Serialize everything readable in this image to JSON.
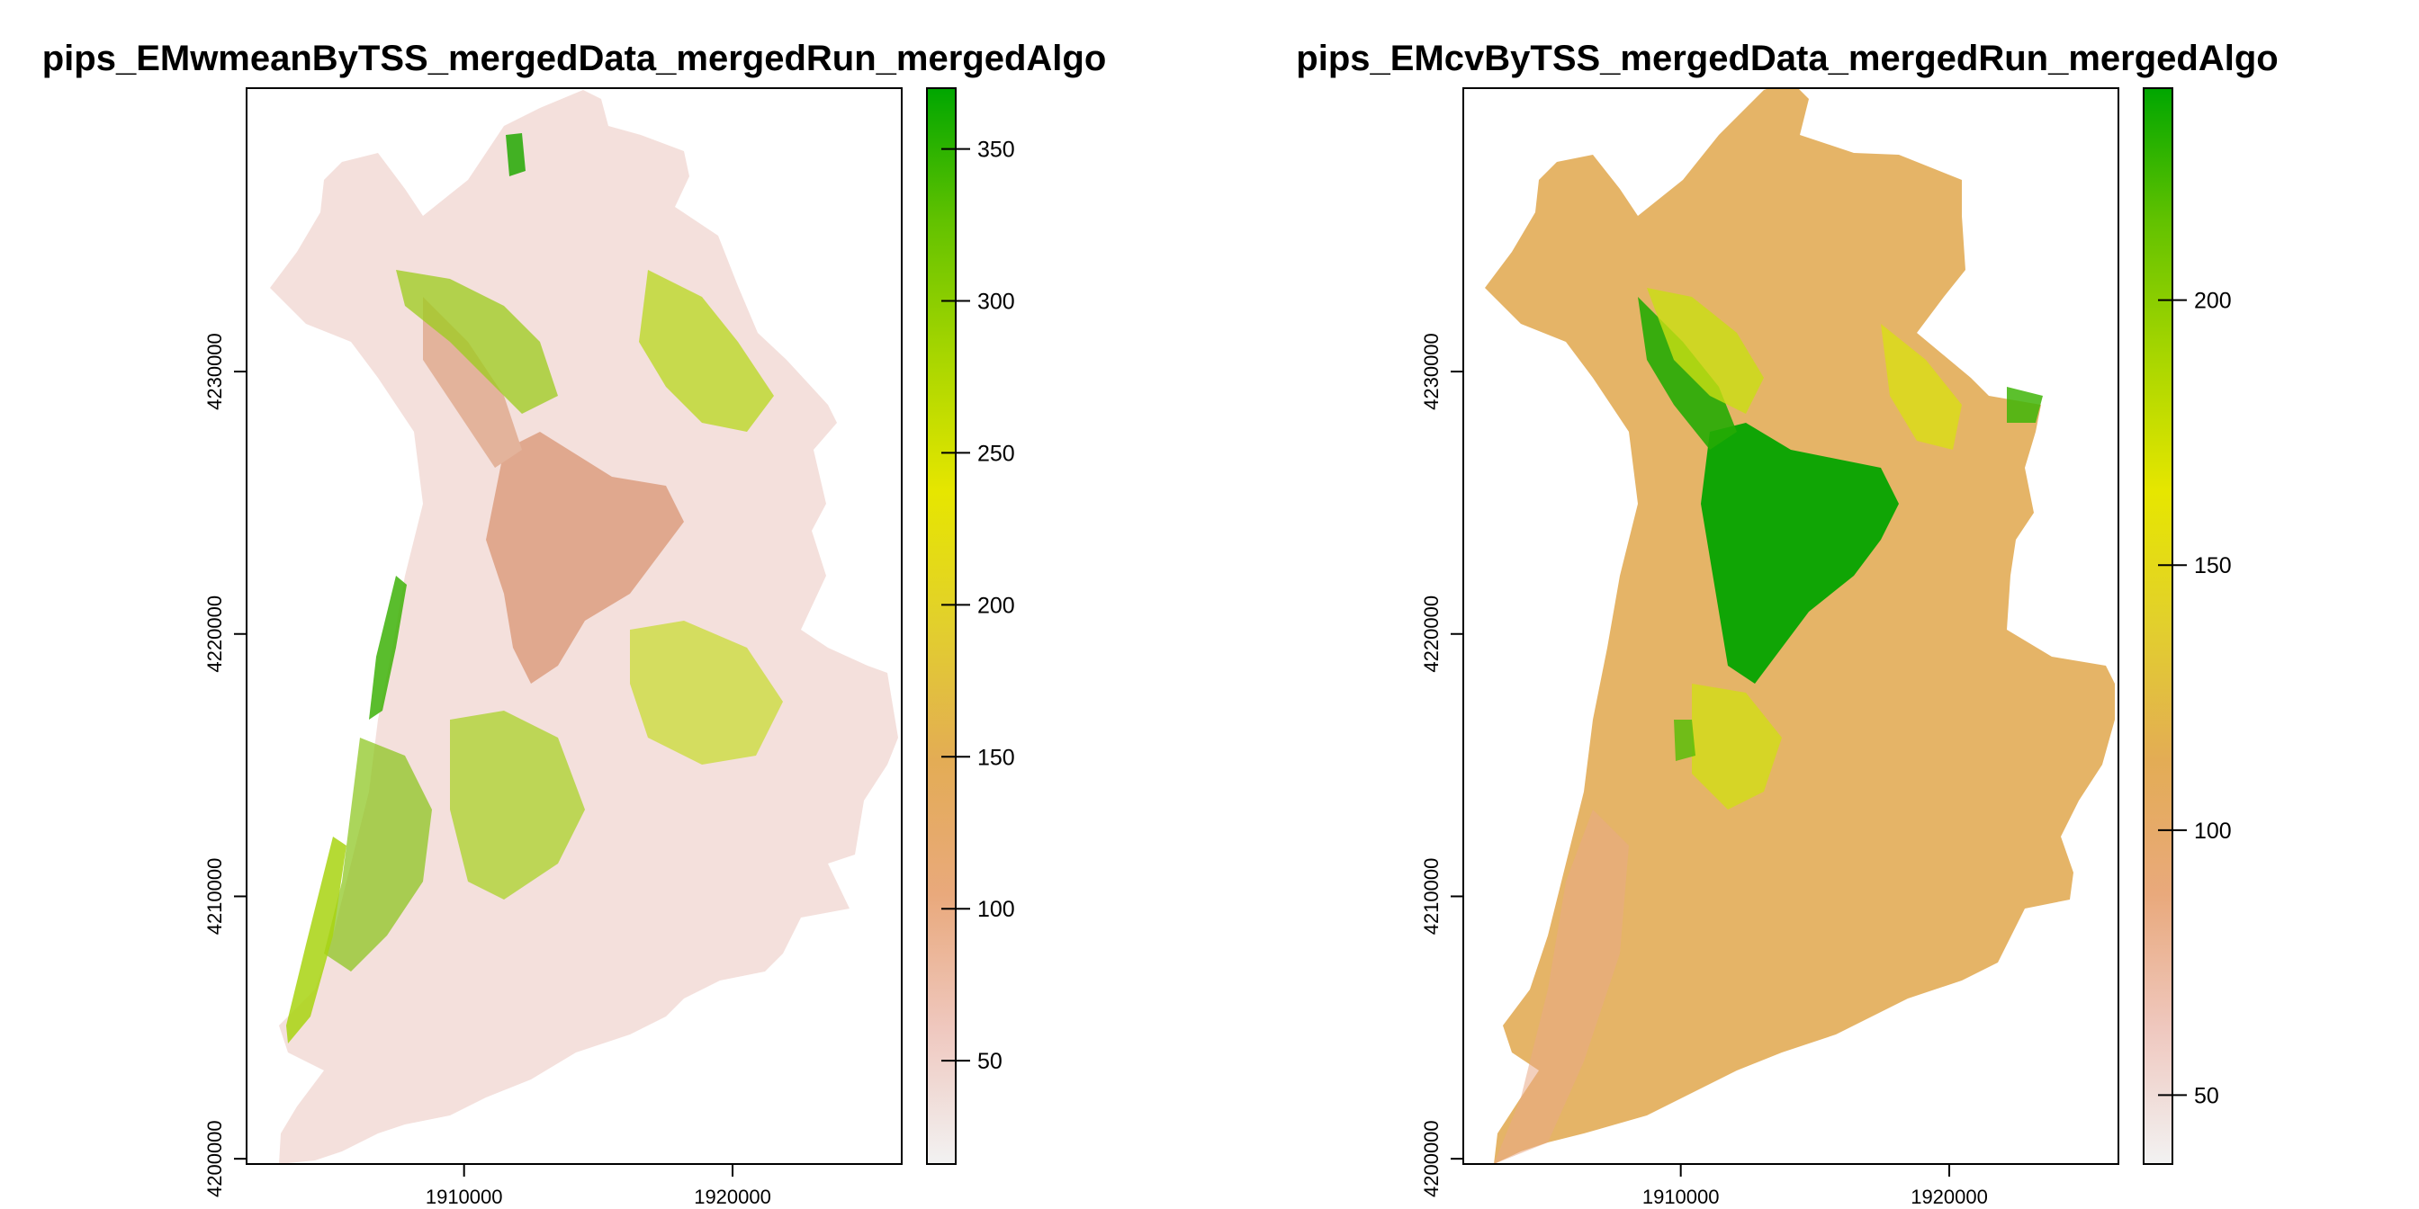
{
  "colors": {
    "ramp": [
      "#f2f2f2",
      "#efc8bf",
      "#e9a97c",
      "#e3ac55",
      "#e2cf2d",
      "#e6e600",
      "#a8d600",
      "#63c200",
      "#00a600"
    ]
  },
  "chart_data": [
    {
      "type": "heatmap",
      "title": "pips_EMwmeanByTSS_mergedData_mergedRun_mergedAlgo",
      "x_ticks": [
        "1910000",
        "1920000"
      ],
      "x_tick_values": [
        1910000,
        1920000
      ],
      "y_ticks": [
        "4200000",
        "4210000",
        "4220000",
        "4230000"
      ],
      "y_tick_values": [
        4200000,
        4210000,
        4220000,
        4230000
      ],
      "xlim": [
        1901900,
        1926300
      ],
      "ylim": [
        4199800,
        4240800
      ],
      "legend_ticks": [
        "50",
        "100",
        "150",
        "200",
        "250",
        "300",
        "350"
      ],
      "legend_tick_values": [
        50,
        100,
        150,
        200,
        250,
        300,
        350
      ],
      "legend_range": [
        16,
        370
      ],
      "legend_position": "right",
      "grid": false
    },
    {
      "type": "heatmap",
      "title": "pips_EMcvByTSS_mergedData_mergedRun_mergedAlgo",
      "x_ticks": [
        "1910000",
        "1920000"
      ],
      "x_tick_values": [
        1910000,
        1920000
      ],
      "y_ticks": [
        "4200000",
        "4210000",
        "4220000",
        "4230000"
      ],
      "y_tick_values": [
        4200000,
        4210000,
        4220000,
        4230000
      ],
      "xlim": [
        1901900,
        1926300
      ],
      "ylim": [
        4199800,
        4240800
      ],
      "legend_ticks": [
        "50",
        "100",
        "150",
        "200"
      ],
      "legend_tick_values": [
        50,
        100,
        150,
        200
      ],
      "legend_range": [
        37,
        240
      ],
      "legend_position": "right",
      "grid": false
    }
  ]
}
